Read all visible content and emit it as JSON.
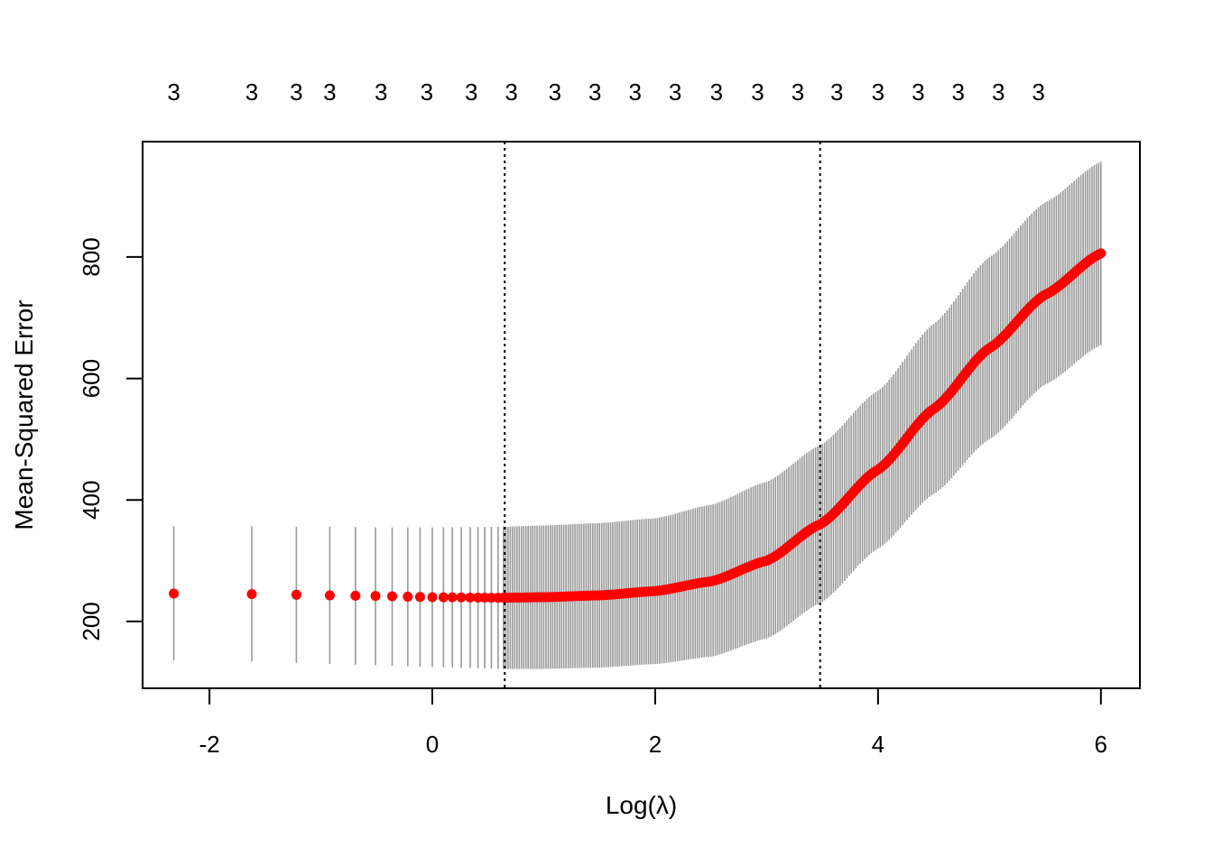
{
  "chart_data": {
    "type": "scatter",
    "title": "",
    "xlabel": "Log(λ)",
    "ylabel": "Mean-Squared Error",
    "xlim": [
      -2.6,
      6.35
    ],
    "ylim": [
      90,
      990
    ],
    "x_ticks": [
      -2,
      0,
      2,
      4,
      6
    ],
    "x_tick_labels": [
      "-2",
      "0",
      "2",
      "4",
      "6"
    ],
    "y_ticks": [
      200,
      400,
      600,
      800
    ],
    "y_tick_labels": [
      "200",
      "400",
      "600",
      "800"
    ],
    "top_axis_values": [
      -2.32,
      -1.62,
      -1.22,
      -0.92,
      -0.46,
      -0.05,
      0.35,
      0.71,
      1.1,
      1.46,
      1.82,
      2.18,
      2.55,
      2.92,
      3.28,
      3.63,
      4.0,
      4.36,
      4.72,
      5.08,
      5.44
    ],
    "top_axis_labels": [
      "3",
      "3",
      "3",
      "3",
      "3",
      "3",
      "3",
      "3",
      "3",
      "3",
      "3",
      "3",
      "3",
      "3",
      "3",
      "3",
      "3",
      "3",
      "3",
      "3",
      "3"
    ],
    "vlines": [
      0.65,
      3.48
    ],
    "grid": false,
    "legend": "none",
    "colors": {
      "points": "#ff0000",
      "errorbars": "#999999",
      "axes": "#000000",
      "vlines": "#000000"
    },
    "discrete_x": [
      -2.32,
      -1.62,
      -1.22,
      -0.92,
      -0.69,
      -0.51,
      -0.36,
      -0.22,
      -0.11,
      0.0,
      0.1,
      0.18,
      0.26,
      0.34,
      0.41,
      0.47,
      0.53,
      0.59,
      0.64
    ],
    "dense_range": [
      0.64,
      6.0
    ],
    "dense_step": 0.02,
    "curve_knots": {
      "x": [
        -2.32,
        -1.62,
        -1.22,
        -0.92,
        -0.51,
        0.0,
        0.65,
        1.0,
        1.5,
        2.0,
        2.5,
        3.0,
        3.48,
        4.0,
        4.5,
        5.0,
        5.5,
        6.0
      ],
      "mse": [
        246,
        245,
        244,
        243,
        242,
        240,
        239,
        240,
        243,
        250,
        266,
        300,
        360,
        450,
        550,
        650,
        738,
        806
      ],
      "upper": [
        357,
        357,
        356,
        356,
        355,
        355,
        356,
        358,
        362,
        370,
        392,
        430,
        490,
        580,
        690,
        800,
        890,
        957
      ],
      "lower": [
        136,
        134,
        132,
        130,
        128,
        125,
        122,
        122,
        124,
        130,
        142,
        172,
        230,
        320,
        410,
        500,
        590,
        655
      ]
    }
  }
}
